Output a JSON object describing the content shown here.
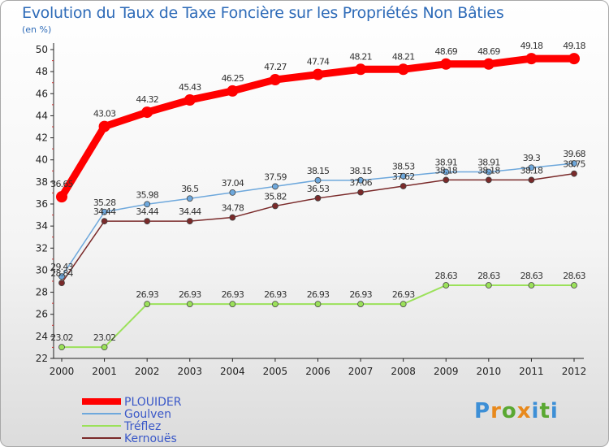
{
  "title": "Evolution du Taux de Taxe Foncière sur les Propriétés Non Bâties",
  "unit": "(en %)",
  "logo": {
    "text": "Proxiti",
    "colors": [
      "#3d8fd6",
      "#e8891c",
      "#5aa832",
      "#e8891c",
      "#3d8fd6",
      "#5aa832",
      "#3d8fd6"
    ]
  },
  "chart_data": {
    "type": "line",
    "title": "Evolution du Taux de Taxe Foncière sur les Propriétés Non Bâties",
    "ylabel": "(en %)",
    "ylim": [
      22,
      50
    ],
    "yticks": [
      22,
      24,
      26,
      28,
      30,
      32,
      34,
      36,
      38,
      40,
      42,
      44,
      46,
      48,
      50
    ],
    "x": [
      "2000",
      "2001",
      "2002",
      "2003",
      "2004",
      "2005",
      "2006",
      "2007",
      "2008",
      "2009",
      "2010",
      "2011",
      "2012"
    ],
    "grid": false,
    "legend_position": "bottom-left",
    "series": [
      {
        "name": "PLOUIDER",
        "color": "#ff0000",
        "values": [
          36.65,
          43.03,
          44.32,
          45.43,
          46.25,
          47.27,
          47.74,
          48.21,
          48.21,
          48.69,
          48.69,
          49.18,
          49.18
        ]
      },
      {
        "name": "Goulven",
        "color": "#6ea8dc",
        "values": [
          29.43,
          35.28,
          35.98,
          36.5,
          37.04,
          37.59,
          38.15,
          38.15,
          38.53,
          38.91,
          38.91,
          39.3,
          39.68
        ]
      },
      {
        "name": "Tréflez",
        "color": "#9be15a",
        "values": [
          23.02,
          23.02,
          26.93,
          26.93,
          26.93,
          26.93,
          26.93,
          26.93,
          26.93,
          28.63,
          28.63,
          28.63,
          28.63
        ]
      },
      {
        "name": "Kernouës",
        "color": "#7a2a2a",
        "values": [
          28.84,
          34.44,
          34.44,
          34.44,
          34.78,
          35.82,
          36.53,
          37.06,
          37.62,
          38.18,
          38.18,
          38.18,
          38.75
        ]
      }
    ]
  }
}
